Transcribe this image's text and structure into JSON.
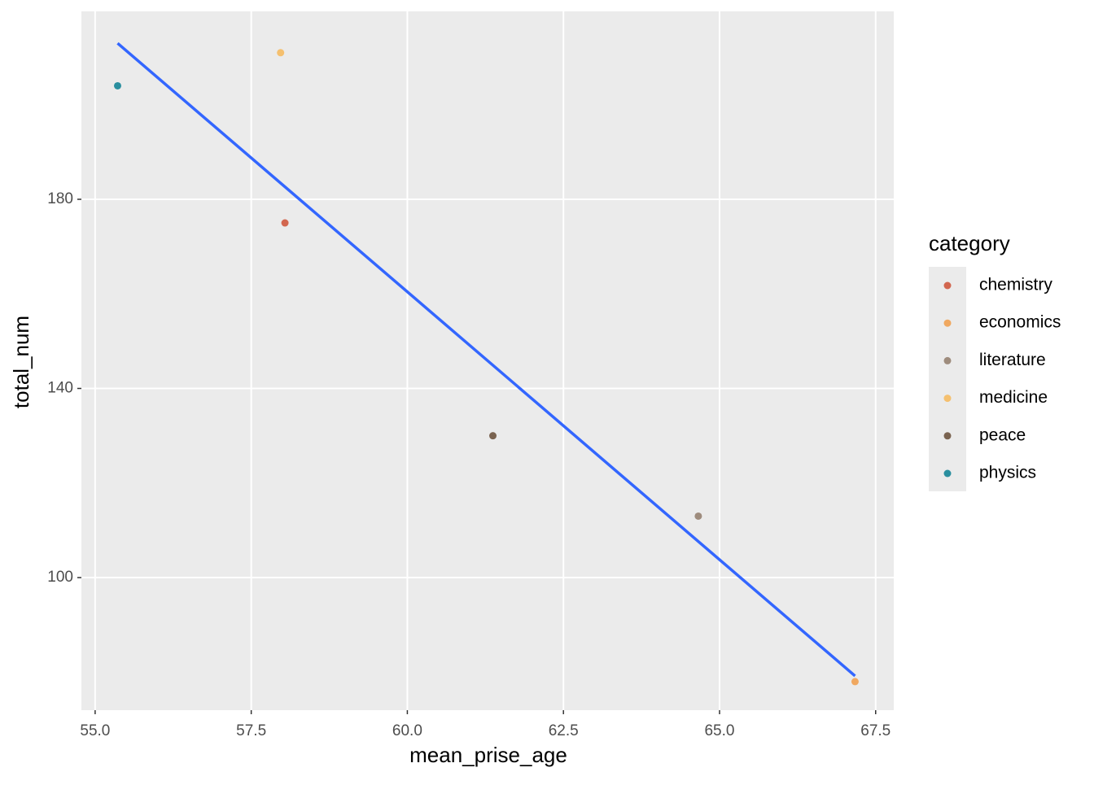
{
  "chart_data": {
    "type": "scatter",
    "x_label": "mean_prise_age",
    "y_label": "total_num",
    "legend_title": "category",
    "legend_position": "right",
    "series": [
      {
        "name": "chemistry",
        "color": "#d2664f",
        "x": [
          58.04
        ],
        "values": [
          175
        ]
      },
      {
        "name": "economics",
        "color": "#f0a860",
        "x": [
          67.17
        ],
        "values": [
          78
        ]
      },
      {
        "name": "literature",
        "color": "#9e8c7d",
        "x": [
          64.66
        ],
        "values": [
          113
        ]
      },
      {
        "name": "medicine",
        "color": "#f5c06f",
        "x": [
          57.97
        ],
        "values": [
          211
        ]
      },
      {
        "name": "peace",
        "color": "#7a6350",
        "x": [
          61.37
        ],
        "values": [
          130
        ]
      },
      {
        "name": "physics",
        "color": "#2a8f9f",
        "x": [
          55.36
        ],
        "values": [
          204
        ]
      }
    ],
    "trend_line": {
      "color": "#3366ff",
      "x": [
        55.36,
        67.17
      ],
      "values": [
        213,
        79.2
      ]
    },
    "xlim": [
      54.78,
      67.79
    ],
    "ylim": [
      71.96,
      219.74
    ],
    "xticks": [
      {
        "value": 55,
        "label": "55.0"
      },
      57.5,
      {
        "value": 60,
        "label": "60.0"
      },
      62.5,
      {
        "value": 65,
        "label": "65.0"
      },
      67.5
    ],
    "yticks": [
      100,
      140,
      180
    ],
    "grid": true
  }
}
